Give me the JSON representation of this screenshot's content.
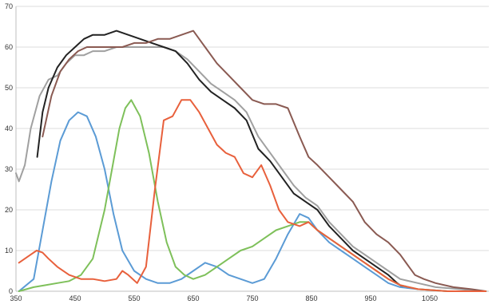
{
  "chart_data": {
    "type": "line",
    "title": "",
    "xlabel": "",
    "ylabel": "",
    "xlim": [
      350,
      1150
    ],
    "ylim": [
      0,
      70
    ],
    "x_ticks": [
      350,
      450,
      550,
      650,
      750,
      850,
      950,
      1050
    ],
    "y_ticks": [
      0,
      10,
      20,
      30,
      40,
      50,
      60,
      70
    ],
    "grid": true,
    "series": [
      {
        "color": "#a0a0a0",
        "points": [
          [
            350,
            29
          ],
          [
            355,
            27
          ],
          [
            365,
            31
          ],
          [
            375,
            40
          ],
          [
            390,
            48
          ],
          [
            405,
            52
          ],
          [
            420,
            53
          ],
          [
            435,
            56
          ],
          [
            450,
            58
          ],
          [
            465,
            58
          ],
          [
            480,
            59
          ],
          [
            500,
            59
          ],
          [
            520,
            60
          ],
          [
            540,
            60
          ],
          [
            560,
            60
          ],
          [
            580,
            60
          ],
          [
            600,
            60
          ],
          [
            620,
            59
          ],
          [
            640,
            57
          ],
          [
            660,
            54
          ],
          [
            680,
            51
          ],
          [
            700,
            49
          ],
          [
            720,
            47
          ],
          [
            740,
            44
          ],
          [
            760,
            38
          ],
          [
            780,
            34
          ],
          [
            800,
            30
          ],
          [
            820,
            26
          ],
          [
            840,
            23
          ],
          [
            860,
            21
          ],
          [
            880,
            17
          ],
          [
            900,
            14
          ],
          [
            920,
            11
          ],
          [
            940,
            9
          ],
          [
            960,
            7
          ],
          [
            980,
            5
          ],
          [
            1000,
            3
          ],
          [
            1030,
            2
          ],
          [
            1060,
            1
          ],
          [
            1100,
            0.5
          ],
          [
            1140,
            0
          ]
        ]
      },
      {
        "color": "#222222",
        "points": [
          [
            386,
            33
          ],
          [
            395,
            44
          ],
          [
            405,
            50
          ],
          [
            420,
            55
          ],
          [
            435,
            58
          ],
          [
            450,
            60
          ],
          [
            465,
            62
          ],
          [
            480,
            63
          ],
          [
            500,
            63
          ],
          [
            520,
            64
          ],
          [
            540,
            63
          ],
          [
            560,
            62
          ],
          [
            580,
            61
          ],
          [
            600,
            60
          ],
          [
            620,
            59
          ],
          [
            640,
            56
          ],
          [
            660,
            52
          ],
          [
            680,
            49
          ],
          [
            700,
            47
          ],
          [
            720,
            45
          ],
          [
            740,
            42
          ],
          [
            760,
            35
          ],
          [
            780,
            32
          ],
          [
            800,
            28
          ],
          [
            820,
            24
          ],
          [
            840,
            22
          ],
          [
            860,
            20
          ],
          [
            880,
            16
          ],
          [
            900,
            13
          ],
          [
            920,
            10
          ],
          [
            940,
            8
          ],
          [
            960,
            6
          ],
          [
            980,
            4
          ],
          [
            995,
            2
          ],
          [
            1005,
            1
          ]
        ]
      },
      {
        "color": "#8a5a52",
        "points": [
          [
            395,
            38
          ],
          [
            410,
            48
          ],
          [
            425,
            54
          ],
          [
            440,
            57
          ],
          [
            455,
            59
          ],
          [
            470,
            60
          ],
          [
            490,
            60
          ],
          [
            510,
            60
          ],
          [
            530,
            60
          ],
          [
            550,
            61
          ],
          [
            570,
            61
          ],
          [
            590,
            62
          ],
          [
            610,
            62
          ],
          [
            630,
            63
          ],
          [
            650,
            64
          ],
          [
            670,
            60
          ],
          [
            690,
            56
          ],
          [
            710,
            53
          ],
          [
            730,
            50
          ],
          [
            750,
            47
          ],
          [
            770,
            46
          ],
          [
            790,
            46
          ],
          [
            810,
            45
          ],
          [
            830,
            38
          ],
          [
            845,
            33
          ],
          [
            860,
            31
          ],
          [
            880,
            28
          ],
          [
            900,
            25
          ],
          [
            920,
            22
          ],
          [
            940,
            17
          ],
          [
            960,
            14
          ],
          [
            980,
            12
          ],
          [
            1000,
            9
          ],
          [
            1015,
            6
          ],
          [
            1025,
            4
          ],
          [
            1040,
            3
          ],
          [
            1060,
            2
          ],
          [
            1090,
            1
          ],
          [
            1120,
            0.5
          ],
          [
            1145,
            0
          ]
        ]
      },
      {
        "color": "#5b9bd5",
        "points": [
          [
            355,
            0
          ],
          [
            380,
            3
          ],
          [
            395,
            15
          ],
          [
            410,
            27
          ],
          [
            425,
            37
          ],
          [
            440,
            42
          ],
          [
            455,
            44
          ],
          [
            470,
            43
          ],
          [
            485,
            38
          ],
          [
            500,
            30
          ],
          [
            515,
            19
          ],
          [
            530,
            10
          ],
          [
            550,
            5
          ],
          [
            570,
            3
          ],
          [
            590,
            2
          ],
          [
            610,
            2
          ],
          [
            630,
            3
          ],
          [
            650,
            5
          ],
          [
            670,
            7
          ],
          [
            690,
            6
          ],
          [
            710,
            4
          ],
          [
            730,
            3
          ],
          [
            750,
            2
          ],
          [
            770,
            3
          ],
          [
            790,
            8
          ],
          [
            810,
            14
          ],
          [
            830,
            19
          ],
          [
            845,
            18
          ],
          [
            860,
            15
          ],
          [
            880,
            12
          ],
          [
            900,
            10
          ],
          [
            920,
            8
          ],
          [
            940,
            6
          ],
          [
            960,
            4
          ],
          [
            980,
            2
          ],
          [
            1000,
            1
          ],
          [
            1030,
            0.5
          ],
          [
            1080,
            0
          ],
          [
            1145,
            0
          ]
        ]
      },
      {
        "color": "#7ec05a",
        "points": [
          [
            355,
            0
          ],
          [
            380,
            1
          ],
          [
            400,
            1.5
          ],
          [
            420,
            2
          ],
          [
            440,
            2.5
          ],
          [
            460,
            4
          ],
          [
            480,
            8
          ],
          [
            500,
            20
          ],
          [
            515,
            32
          ],
          [
            525,
            40
          ],
          [
            535,
            45
          ],
          [
            545,
            47
          ],
          [
            560,
            43
          ],
          [
            575,
            34
          ],
          [
            590,
            22
          ],
          [
            605,
            12
          ],
          [
            620,
            6
          ],
          [
            635,
            4
          ],
          [
            650,
            3
          ],
          [
            670,
            4
          ],
          [
            690,
            6
          ],
          [
            710,
            8
          ],
          [
            730,
            10
          ],
          [
            750,
            11
          ],
          [
            770,
            13
          ],
          [
            790,
            15
          ],
          [
            810,
            16
          ],
          [
            830,
            17
          ],
          [
            845,
            17
          ],
          [
            860,
            15
          ],
          [
            880,
            13
          ],
          [
            900,
            11
          ],
          [
            920,
            9
          ],
          [
            940,
            7
          ],
          [
            960,
            5
          ],
          [
            980,
            3
          ],
          [
            1000,
            1.5
          ],
          [
            1030,
            0.5
          ],
          [
            1080,
            0
          ],
          [
            1145,
            0
          ]
        ]
      },
      {
        "color": "#e8603c",
        "points": [
          [
            355,
            7
          ],
          [
            365,
            8
          ],
          [
            375,
            9
          ],
          [
            385,
            10
          ],
          [
            395,
            9.5
          ],
          [
            405,
            8
          ],
          [
            420,
            6
          ],
          [
            440,
            4
          ],
          [
            460,
            3
          ],
          [
            480,
            3
          ],
          [
            500,
            2.5
          ],
          [
            520,
            3
          ],
          [
            530,
            5
          ],
          [
            540,
            4
          ],
          [
            555,
            2
          ],
          [
            570,
            6
          ],
          [
            585,
            25
          ],
          [
            600,
            42
          ],
          [
            615,
            43
          ],
          [
            630,
            47
          ],
          [
            645,
            47
          ],
          [
            660,
            44
          ],
          [
            675,
            40
          ],
          [
            690,
            36
          ],
          [
            705,
            34
          ],
          [
            720,
            33
          ],
          [
            735,
            29
          ],
          [
            750,
            28
          ],
          [
            765,
            31
          ],
          [
            780,
            26
          ],
          [
            795,
            20
          ],
          [
            810,
            17
          ],
          [
            830,
            16
          ],
          [
            845,
            17
          ],
          [
            860,
            15
          ],
          [
            880,
            13
          ],
          [
            900,
            11
          ],
          [
            920,
            9
          ],
          [
            940,
            7
          ],
          [
            960,
            5
          ],
          [
            980,
            3
          ],
          [
            1000,
            1.5
          ],
          [
            1030,
            0.5
          ],
          [
            1080,
            0
          ],
          [
            1145,
            0
          ]
        ]
      }
    ]
  }
}
